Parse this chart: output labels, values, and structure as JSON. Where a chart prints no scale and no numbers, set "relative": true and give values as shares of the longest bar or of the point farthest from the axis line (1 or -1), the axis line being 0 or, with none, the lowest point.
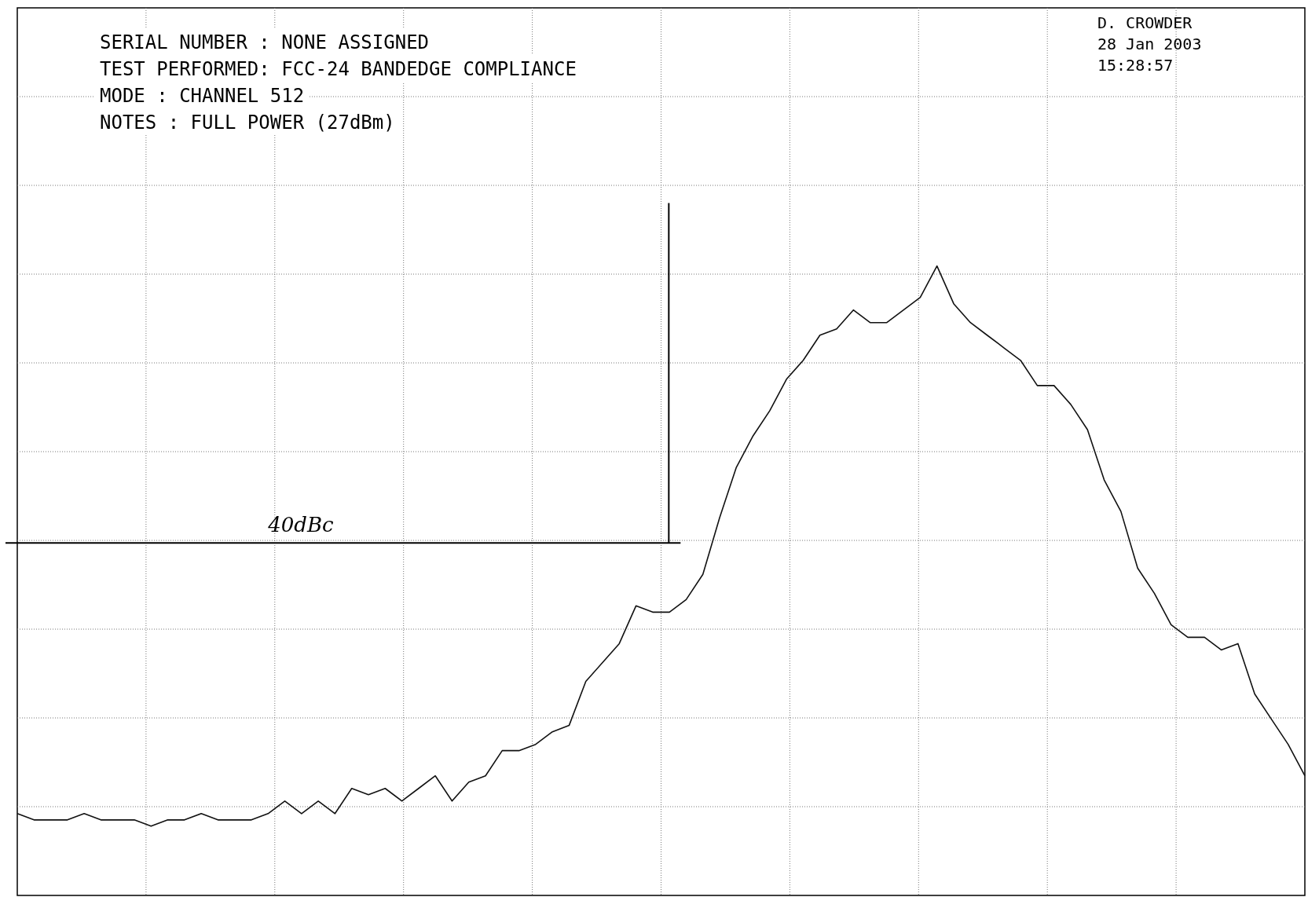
{
  "chart_data": {
    "type": "line",
    "relative": true,
    "grid": true,
    "legend": false,
    "marker": "none",
    "line_style": "solid",
    "categories": [
      null,
      null,
      null,
      null,
      null,
      null,
      null,
      null,
      null,
      null,
      null,
      null,
      null,
      null,
      null,
      null,
      null,
      null,
      null,
      null,
      null,
      null,
      null,
      null,
      null,
      null,
      null,
      null,
      null,
      null,
      null,
      null,
      null,
      null,
      null,
      null,
      null,
      null,
      null,
      null,
      null,
      null,
      null,
      null,
      null,
      null,
      null,
      null,
      null,
      null,
      null,
      null,
      null,
      null,
      null,
      null,
      null,
      null,
      null,
      null,
      null,
      null,
      null,
      null,
      null,
      null,
      null,
      null,
      null,
      null,
      null,
      null,
      null,
      null,
      null,
      null,
      null,
      null
    ],
    "series": [
      {
        "color": "#111111",
        "values": [
          0.13,
          0.12,
          0.12,
          0.12,
          0.13,
          0.12,
          0.12,
          0.12,
          0.11,
          0.12,
          0.12,
          0.13,
          0.12,
          0.12,
          0.12,
          0.13,
          0.15,
          0.13,
          0.15,
          0.13,
          0.17,
          0.16,
          0.17,
          0.15,
          0.17,
          0.19,
          0.15,
          0.18,
          0.19,
          0.23,
          0.23,
          0.24,
          0.26,
          0.27,
          0.34,
          0.37,
          0.4,
          0.46,
          0.45,
          0.45,
          0.47,
          0.51,
          0.6,
          0.68,
          0.73,
          0.77,
          0.82,
          0.85,
          0.89,
          0.9,
          0.93,
          0.91,
          0.91,
          0.93,
          0.95,
          1.0,
          0.94,
          0.91,
          0.89,
          0.87,
          0.85,
          0.81,
          0.81,
          0.78,
          0.74,
          0.66,
          0.61,
          0.52,
          0.48,
          0.43,
          0.41,
          0.41,
          0.39,
          0.4,
          0.32,
          0.28,
          0.24,
          0.19
        ]
      }
    ],
    "ref_lines": [
      {
        "axis": "y",
        "value": 0.56,
        "label": "40dBc"
      }
    ],
    "annotations": [
      "SERIAL NUMBER : NONE ASSIGNED",
      "TEST PERFORMED: FCC-24 BANDEDGE COMPLIANCE",
      "MODE : CHANNEL 512",
      "NOTES : FULL POWER (27dBm)",
      "D. CROWDER",
      "28 Jan 2003",
      "15:28:57"
    ]
  }
}
